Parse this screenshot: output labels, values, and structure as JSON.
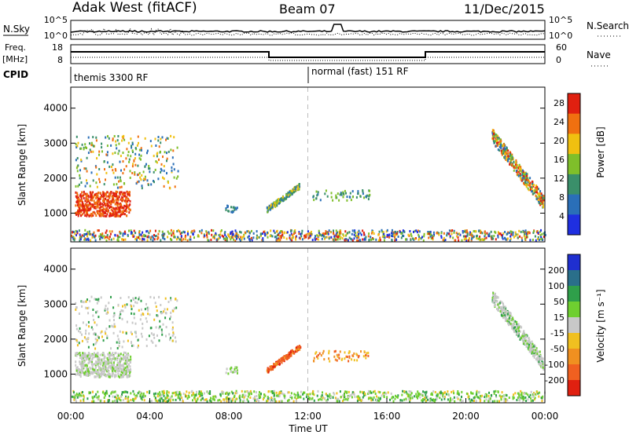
{
  "header": {
    "station": "Adak West (fitACF)",
    "beam": "Beam 07",
    "date": "11/Dec/2015"
  },
  "panels": {
    "nsky_label": "N.Sky",
    "nsearch_label": "N.Search",
    "freq_label_1": "Freq.",
    "freq_label_2": "[MHz]",
    "nave_label": "Nave",
    "cpid_label": "CPID",
    "nsky_ticks": [
      "10^5",
      "10^0"
    ],
    "nsearch_ticks": [
      "10^5",
      "10^0"
    ],
    "freq_ticks": [
      "18",
      "8"
    ],
    "nave_ticks": [
      "60",
      "0"
    ],
    "cpid_segments": [
      {
        "label": "themis 3300 RF",
        "start_hour": 0
      },
      {
        "label": "normal (fast) 151 RF",
        "start_hour": 12
      }
    ]
  },
  "chart_data": [
    {
      "type": "heatmap",
      "name": "power",
      "xlabel": "",
      "ylabel": "Slant Range [km]",
      "xlim": [
        0,
        24
      ],
      "ylim": [
        180,
        4600
      ],
      "yticks": [
        "1000",
        "2000",
        "3000",
        "4000"
      ],
      "colorbar_label": "Power [dB]",
      "colorbar_ticks": [
        "4",
        "8",
        "12",
        "16",
        "20",
        "24",
        "28"
      ],
      "colorbar_range": [
        0,
        30
      ],
      "colors": [
        "#1f2fe0",
        "#2a6fb8",
        "#3a8f6a",
        "#7fbf2a",
        "#f0c010",
        "#f07010",
        "#e02010"
      ],
      "dashed_vline_hour": 12
    },
    {
      "type": "heatmap",
      "name": "velocity",
      "xlabel": "Time UT",
      "ylabel": "Slant Range [km]",
      "xlim": [
        0,
        24
      ],
      "ylim": [
        180,
        4600
      ],
      "xticks": [
        "00:00",
        "04:00",
        "08:00",
        "12:00",
        "16:00",
        "20:00",
        "00:00"
      ],
      "yticks": [
        "1000",
        "2000",
        "3000",
        "4000"
      ],
      "colorbar_label": "Velocity [m s⁻¹]",
      "colorbar_ticks": [
        "200",
        "100",
        "50",
        "15",
        "-15",
        "-50",
        "-100",
        "-200"
      ],
      "colors": [
        "#1f2fd0",
        "#2a6f8a",
        "#2f9f4a",
        "#6fcf30",
        "#c8c8c8",
        "#f0c020",
        "#f09020",
        "#f06020",
        "#e02010"
      ],
      "dashed_vline_hour": 12
    }
  ]
}
